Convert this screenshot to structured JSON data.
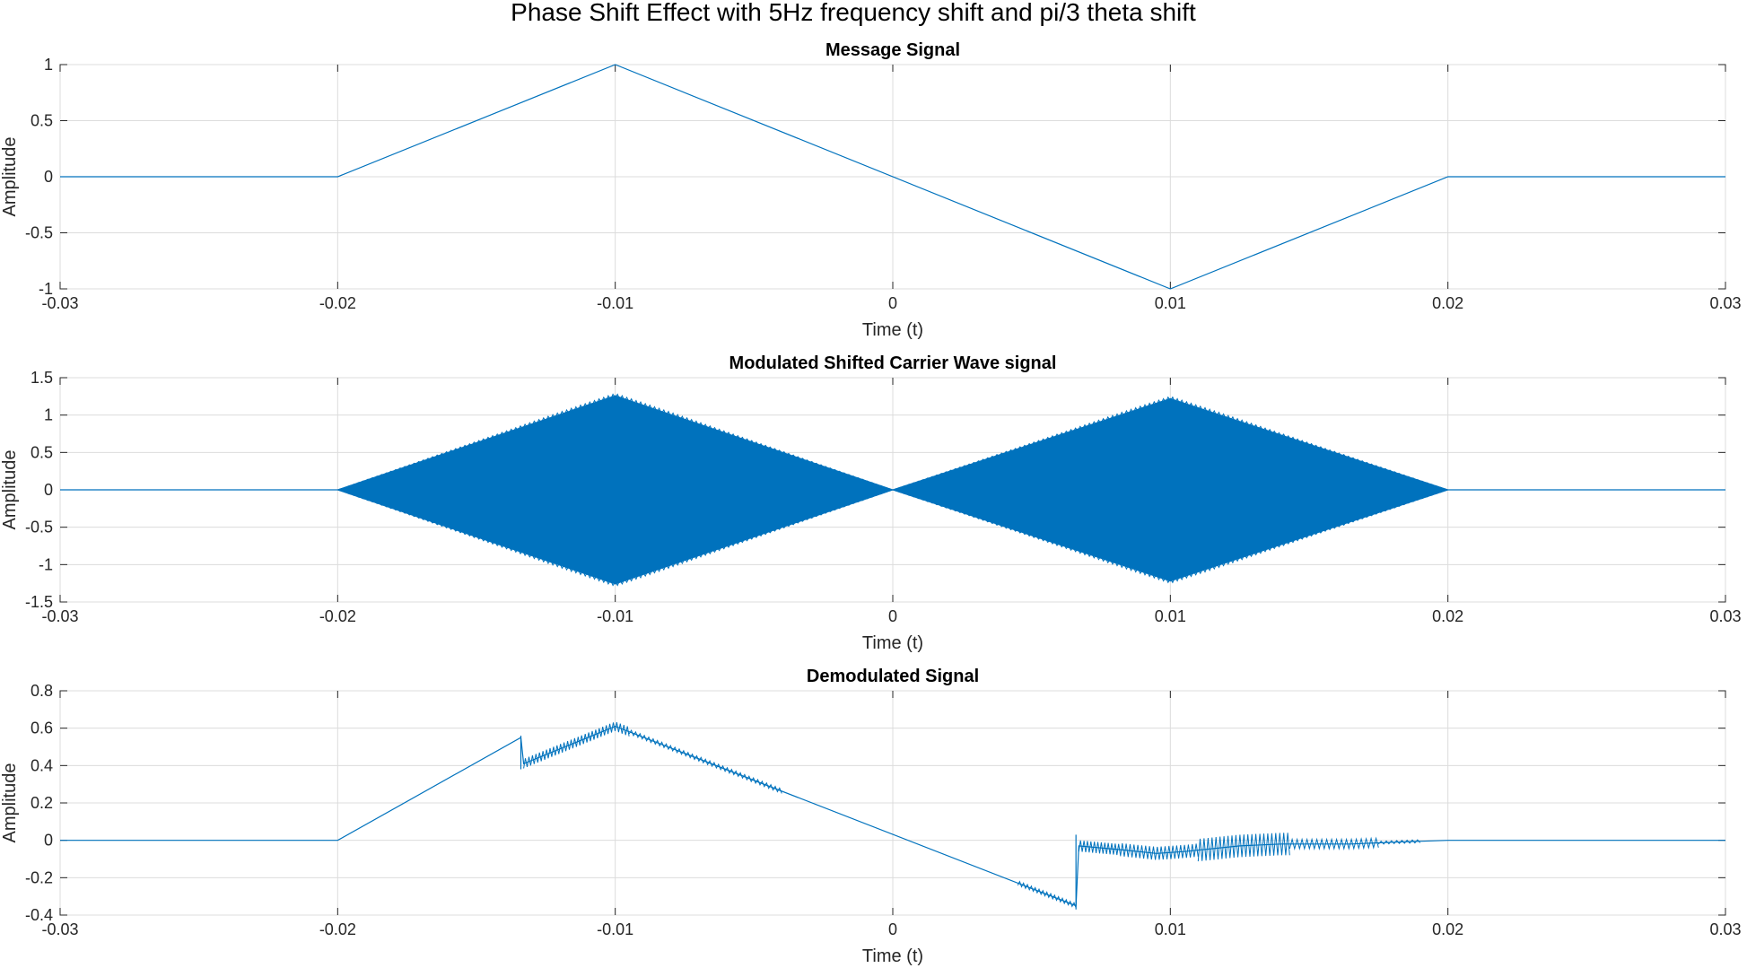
{
  "figure": {
    "title": "Phase Shift Effect with 5Hz frequency shift and pi/3 theta shift",
    "line_color": "#0072BD"
  },
  "chart_data": [
    {
      "type": "line",
      "title": "Message Signal",
      "xlabel": "Time (t)",
      "ylabel": "Amplitude",
      "xlim": [
        -0.03,
        0.03
      ],
      "ylim": [
        -1,
        1
      ],
      "xticks": [
        -0.03,
        -0.02,
        -0.01,
        0,
        0.01,
        0.02,
        0.03
      ],
      "xtick_labels": [
        "-0.03",
        "-0.02",
        "-0.01",
        "0",
        "0.01",
        "0.02",
        "0.03"
      ],
      "yticks": [
        -1,
        -0.5,
        0,
        0.5,
        1
      ],
      "ytick_labels": [
        "-1",
        "-0.5",
        "0",
        "0.5",
        "1"
      ],
      "grid": true,
      "series": [
        {
          "x": [
            -0.03,
            -0.02,
            -0.01,
            0.01,
            0.02,
            0.03
          ],
          "y": [
            0,
            0,
            1,
            -1,
            0,
            0
          ]
        }
      ]
    },
    {
      "type": "line",
      "title": "Modulated Shifted Carrier Wave signal",
      "xlabel": "Time (t)",
      "ylabel": "Amplitude",
      "xlim": [
        -0.03,
        0.03
      ],
      "ylim": [
        -1.5,
        1.5
      ],
      "xticks": [
        -0.03,
        -0.02,
        -0.01,
        0,
        0.01,
        0.02,
        0.03
      ],
      "xtick_labels": [
        "-0.03",
        "-0.02",
        "-0.01",
        "0",
        "0.01",
        "0.02",
        "0.03"
      ],
      "yticks": [
        -1.5,
        -1,
        -0.5,
        0,
        0.5,
        1,
        1.5
      ],
      "ytick_labels": [
        "-1.5",
        "-1",
        "-0.5",
        "0",
        "0.5",
        "1",
        "1.5"
      ],
      "grid": true,
      "series": [
        {
          "upper_envelope": {
            "x": [
              -0.03,
              -0.02,
              -0.01,
              0,
              0.01,
              0.02,
              0.03
            ],
            "y": [
              0,
              0,
              1.26,
              0,
              1.22,
              0,
              0
            ]
          },
          "lower_envelope": {
            "x": [
              -0.03,
              -0.02,
              -0.01,
              0,
              0.01,
              0.02,
              0.03
            ],
            "y": [
              0,
              0,
              -1.26,
              0,
              -1.22,
              0,
              0
            ]
          }
        }
      ]
    },
    {
      "type": "line",
      "title": "Demodulated Signal",
      "xlabel": "Time (t)",
      "ylabel": "Amplitude",
      "xlim": [
        -0.03,
        0.03
      ],
      "ylim": [
        -0.4,
        0.8
      ],
      "xticks": [
        -0.03,
        -0.02,
        -0.01,
        0,
        0.01,
        0.02,
        0.03
      ],
      "xtick_labels": [
        "-0.03",
        "-0.02",
        "-0.01",
        "0",
        "0.01",
        "0.02",
        "0.03"
      ],
      "yticks": [
        -0.4,
        -0.2,
        0,
        0.2,
        0.4,
        0.6,
        0.8
      ],
      "ytick_labels": [
        "-0.4",
        "-0.2",
        "0",
        "0.2",
        "0.4",
        "0.6",
        "0.8"
      ],
      "grid": true,
      "series": [
        {
          "x": [
            -0.03,
            -0.02,
            -0.0134,
            -0.0133,
            -0.01,
            0.0066,
            0.0067,
            0.0082,
            0.0095,
            0.0105,
            0.0125,
            0.014,
            0.0165,
            0.018,
            0.02,
            0.03
          ],
          "y": [
            0,
            0,
            0.55,
            0.41,
            0.61,
            -0.35,
            -0.03,
            -0.05,
            -0.07,
            -0.06,
            -0.03,
            -0.02,
            -0.02,
            -0.01,
            0,
            0
          ]
        }
      ]
    }
  ]
}
